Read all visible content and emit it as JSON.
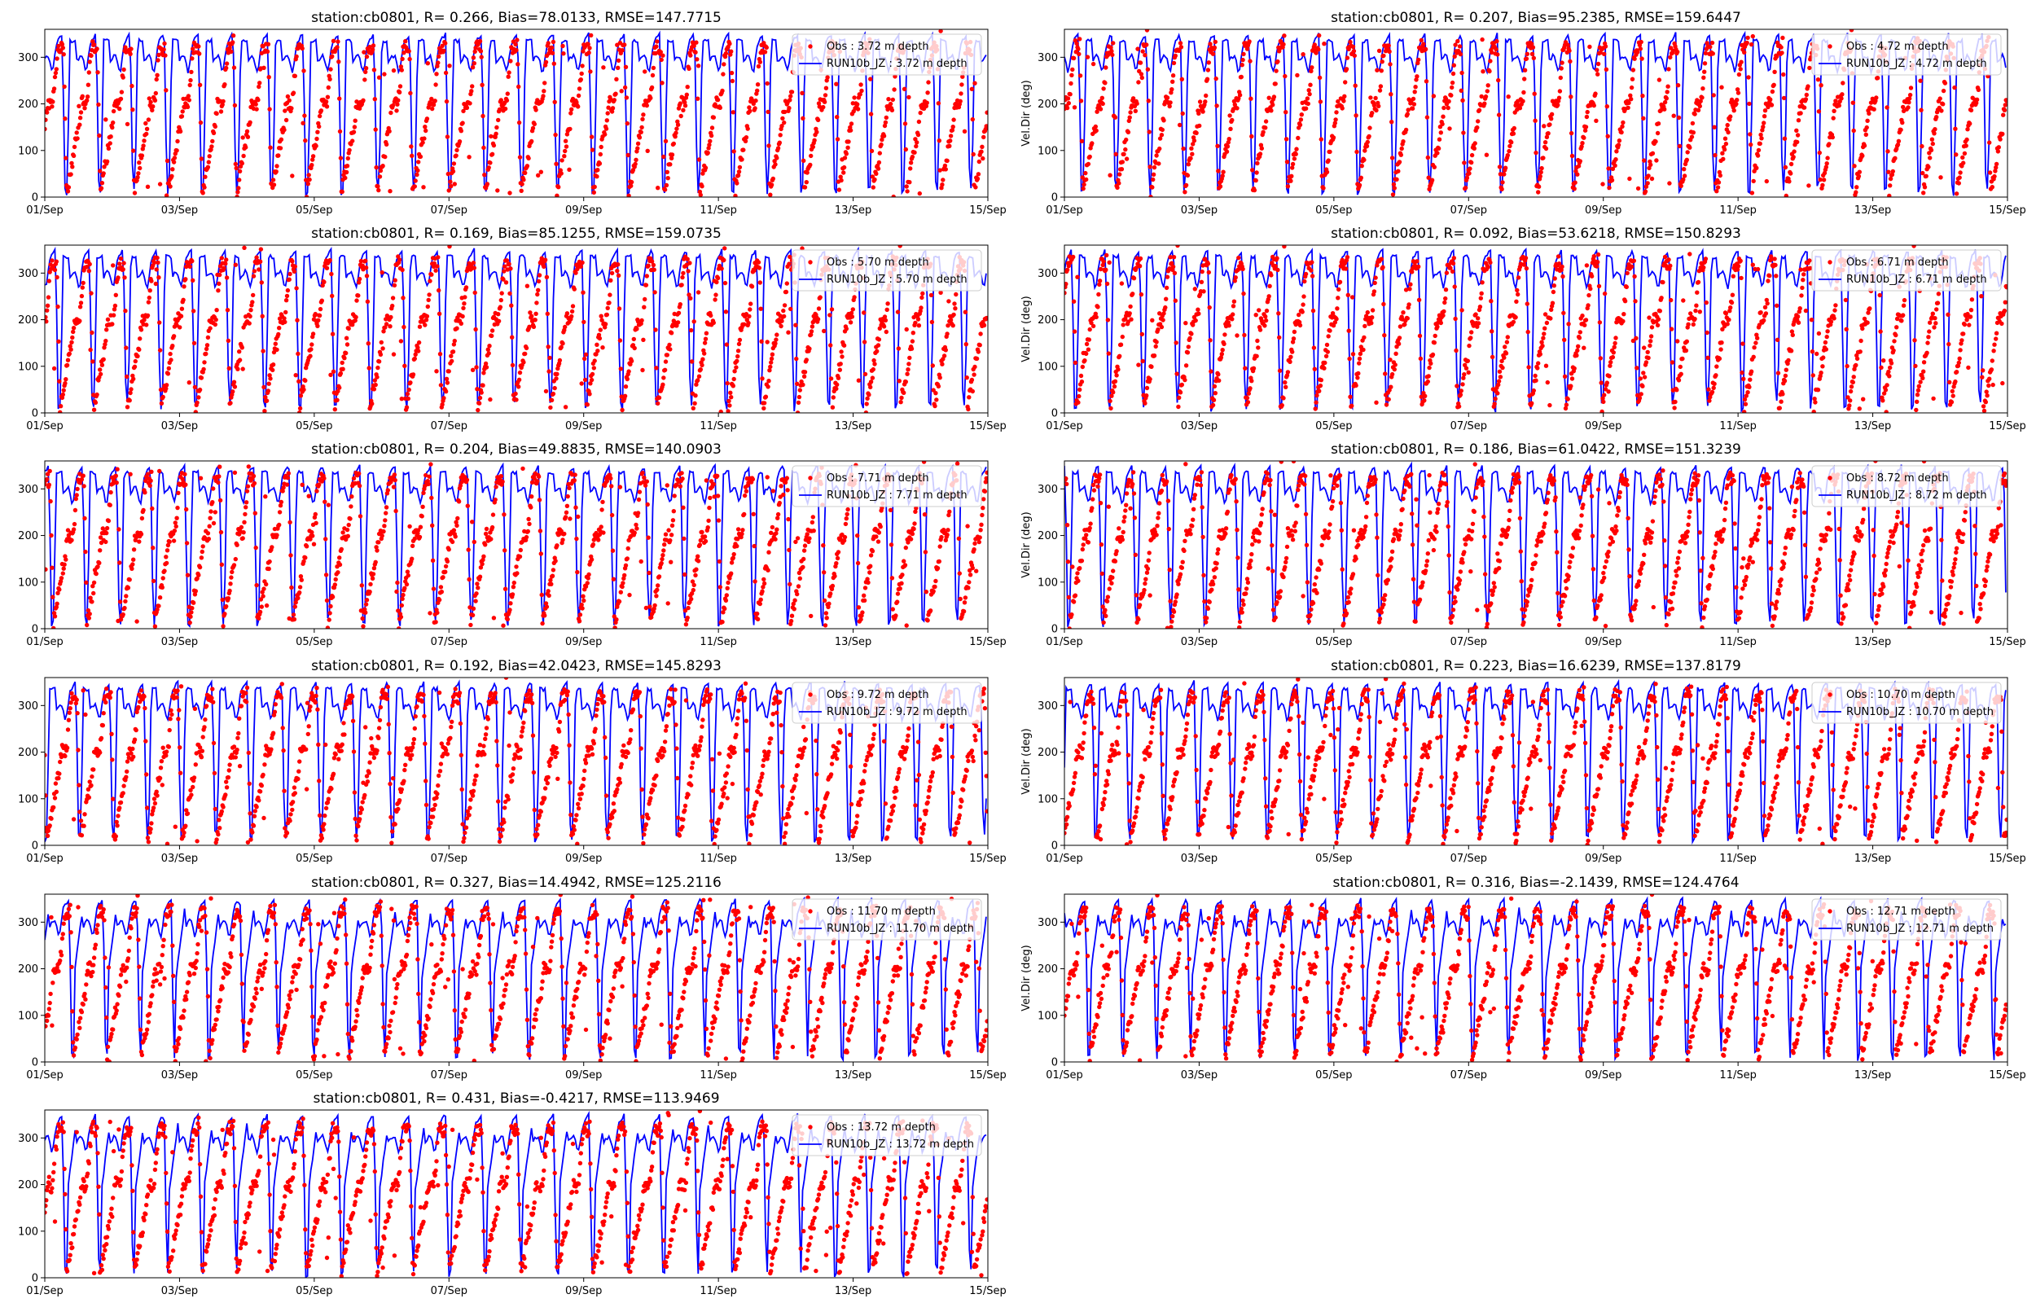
{
  "chart_data": [
    {
      "type": "line",
      "title": "station:cb0801, R= 0.266, Bias=78.0133, RMSE=147.7715",
      "ylabel": "",
      "x_ticks": [
        "01/Sep",
        "03/Sep",
        "05/Sep",
        "07/Sep",
        "09/Sep",
        "11/Sep",
        "13/Sep",
        "15/Sep"
      ],
      "y_ticks": [
        "0",
        "100",
        "200",
        "300"
      ],
      "xlim": [
        "01/Sep",
        "15/Sep"
      ],
      "ylim": [
        0,
        360
      ],
      "legend_position": "upper right",
      "series": [
        {
          "name": "Obs : 3.72 m depth",
          "kind": "scatter",
          "color": "#ff0000"
        },
        {
          "name": "RUN10b_JZ : 3.72 m depth",
          "kind": "line",
          "color": "#0000ff"
        }
      ],
      "grid": false,
      "phase": 0.0,
      "skill": 0.3
    },
    {
      "type": "line",
      "title": "station:cb0801, R= 0.207, Bias=95.2385, RMSE=159.6447",
      "ylabel": "Vel.Dir (deg)",
      "x_ticks": [
        "01/Sep",
        "03/Sep",
        "05/Sep",
        "07/Sep",
        "09/Sep",
        "11/Sep",
        "13/Sep",
        "15/Sep"
      ],
      "y_ticks": [
        "0",
        "100",
        "200",
        "300"
      ],
      "xlim": [
        "01/Sep",
        "15/Sep"
      ],
      "ylim": [
        0,
        360
      ],
      "legend_position": "upper right",
      "series": [
        {
          "name": "Obs : 4.72 m depth",
          "kind": "scatter",
          "color": "#ff0000"
        },
        {
          "name": "RUN10b_JZ : 4.72 m depth",
          "kind": "line",
          "color": "#0000ff"
        }
      ],
      "grid": false,
      "phase": 0.1,
      "skill": 0.25
    },
    {
      "type": "line",
      "title": "station:cb0801, R= 0.169, Bias=85.1255, RMSE=159.0735",
      "ylabel": "",
      "x_ticks": [
        "01/Sep",
        "03/Sep",
        "05/Sep",
        "07/Sep",
        "09/Sep",
        "11/Sep",
        "13/Sep",
        "15/Sep"
      ],
      "y_ticks": [
        "0",
        "100",
        "200",
        "300"
      ],
      "xlim": [
        "01/Sep",
        "15/Sep"
      ],
      "ylim": [
        0,
        360
      ],
      "legend_position": "upper right",
      "series": [
        {
          "name": "Obs : 5.70 m depth",
          "kind": "scatter",
          "color": "#ff0000"
        },
        {
          "name": "RUN10b_JZ : 5.70 m depth",
          "kind": "line",
          "color": "#0000ff"
        }
      ],
      "grid": false,
      "phase": 0.2,
      "skill": 0.22
    },
    {
      "type": "line",
      "title": "station:cb0801, R= 0.092, Bias=53.6218, RMSE=150.8293",
      "ylabel": "Vel.Dir (deg)",
      "x_ticks": [
        "01/Sep",
        "03/Sep",
        "05/Sep",
        "07/Sep",
        "09/Sep",
        "11/Sep",
        "13/Sep",
        "15/Sep"
      ],
      "y_ticks": [
        "0",
        "100",
        "200",
        "300"
      ],
      "xlim": [
        "01/Sep",
        "15/Sep"
      ],
      "ylim": [
        0,
        360
      ],
      "legend_position": "upper right",
      "series": [
        {
          "name": "Obs : 6.71 m depth",
          "kind": "scatter",
          "color": "#ff0000"
        },
        {
          "name": "RUN10b_JZ : 6.71 m depth",
          "kind": "line",
          "color": "#0000ff"
        }
      ],
      "grid": false,
      "phase": 0.3,
      "skill": 0.2
    },
    {
      "type": "line",
      "title": "station:cb0801, R= 0.204, Bias=49.8835, RMSE=140.0903",
      "ylabel": "",
      "x_ticks": [
        "01/Sep",
        "03/Sep",
        "05/Sep",
        "07/Sep",
        "09/Sep",
        "11/Sep",
        "13/Sep",
        "15/Sep"
      ],
      "y_ticks": [
        "0",
        "100",
        "200",
        "300"
      ],
      "xlim": [
        "01/Sep",
        "15/Sep"
      ],
      "ylim": [
        0,
        360
      ],
      "legend_position": "upper right",
      "series": [
        {
          "name": "Obs : 7.71 m depth",
          "kind": "scatter",
          "color": "#ff0000"
        },
        {
          "name": "RUN10b_JZ : 7.71 m depth",
          "kind": "line",
          "color": "#0000ff"
        }
      ],
      "grid": false,
      "phase": 0.4,
      "skill": 0.35
    },
    {
      "type": "line",
      "title": "station:cb0801, R= 0.186, Bias=61.0422, RMSE=151.3239",
      "ylabel": "Vel.Dir (deg)",
      "x_ticks": [
        "01/Sep",
        "03/Sep",
        "05/Sep",
        "07/Sep",
        "09/Sep",
        "11/Sep",
        "13/Sep",
        "15/Sep"
      ],
      "y_ticks": [
        "0",
        "100",
        "200",
        "300"
      ],
      "xlim": [
        "01/Sep",
        "15/Sep"
      ],
      "ylim": [
        0,
        360
      ],
      "legend_position": "upper right",
      "series": [
        {
          "name": "Obs : 8.72 m depth",
          "kind": "scatter",
          "color": "#ff0000"
        },
        {
          "name": "RUN10b_JZ : 8.72 m depth",
          "kind": "line",
          "color": "#0000ff"
        }
      ],
      "grid": false,
      "phase": 0.5,
      "skill": 0.3
    },
    {
      "type": "line",
      "title": "station:cb0801, R= 0.192, Bias=42.0423, RMSE=145.8293",
      "ylabel": "",
      "x_ticks": [
        "01/Sep",
        "03/Sep",
        "05/Sep",
        "07/Sep",
        "09/Sep",
        "11/Sep",
        "13/Sep",
        "15/Sep"
      ],
      "y_ticks": [
        "0",
        "100",
        "200",
        "300"
      ],
      "xlim": [
        "01/Sep",
        "15/Sep"
      ],
      "ylim": [
        0,
        360
      ],
      "legend_position": "upper right",
      "series": [
        {
          "name": "Obs : 9.72 m depth",
          "kind": "scatter",
          "color": "#ff0000"
        },
        {
          "name": "RUN10b_JZ : 9.72 m depth",
          "kind": "line",
          "color": "#0000ff"
        }
      ],
      "grid": false,
      "phase": 0.6,
      "skill": 0.35
    },
    {
      "type": "line",
      "title": "station:cb0801, R= 0.223, Bias=16.6239, RMSE=137.8179",
      "ylabel": "Vel.Dir (deg)",
      "x_ticks": [
        "01/Sep",
        "03/Sep",
        "05/Sep",
        "07/Sep",
        "09/Sep",
        "11/Sep",
        "13/Sep",
        "15/Sep"
      ],
      "y_ticks": [
        "0",
        "100",
        "200",
        "300"
      ],
      "xlim": [
        "01/Sep",
        "15/Sep"
      ],
      "ylim": [
        0,
        360
      ],
      "legend_position": "upper right",
      "series": [
        {
          "name": "Obs : 10.70 m depth",
          "kind": "scatter",
          "color": "#ff0000"
        },
        {
          "name": "RUN10b_JZ : 10.70 m depth",
          "kind": "line",
          "color": "#0000ff"
        }
      ],
      "grid": false,
      "phase": 0.7,
      "skill": 0.45
    },
    {
      "type": "line",
      "title": "station:cb0801, R= 0.327, Bias=14.4942, RMSE=125.2116",
      "ylabel": "",
      "x_ticks": [
        "01/Sep",
        "03/Sep",
        "05/Sep",
        "07/Sep",
        "09/Sep",
        "11/Sep",
        "13/Sep",
        "15/Sep"
      ],
      "y_ticks": [
        "0",
        "100",
        "200",
        "300"
      ],
      "xlim": [
        "01/Sep",
        "15/Sep"
      ],
      "ylim": [
        0,
        360
      ],
      "legend_position": "upper right",
      "series": [
        {
          "name": "Obs : 11.70 m depth",
          "kind": "scatter",
          "color": "#ff0000"
        },
        {
          "name": "RUN10b_JZ : 11.70 m depth",
          "kind": "line",
          "color": "#0000ff"
        }
      ],
      "grid": false,
      "phase": 0.8,
      "skill": 0.6
    },
    {
      "type": "line",
      "title": "station:cb0801, R= 0.316, Bias=-2.1439, RMSE=124.4764",
      "ylabel": "Vel.Dir (deg)",
      "x_ticks": [
        "01/Sep",
        "03/Sep",
        "05/Sep",
        "07/Sep",
        "09/Sep",
        "11/Sep",
        "13/Sep",
        "15/Sep"
      ],
      "y_ticks": [
        "0",
        "100",
        "200",
        "300"
      ],
      "xlim": [
        "01/Sep",
        "15/Sep"
      ],
      "ylim": [
        0,
        360
      ],
      "legend_position": "upper right",
      "series": [
        {
          "name": "Obs : 12.71 m depth",
          "kind": "scatter",
          "color": "#ff0000"
        },
        {
          "name": "RUN10b_JZ : 12.71 m depth",
          "kind": "line",
          "color": "#0000ff"
        }
      ],
      "grid": false,
      "phase": 0.9,
      "skill": 0.7
    },
    {
      "type": "line",
      "title": "station:cb0801, R= 0.431, Bias=-0.4217, RMSE=113.9469",
      "ylabel": "",
      "x_ticks": [
        "01/Sep",
        "03/Sep",
        "05/Sep",
        "07/Sep",
        "09/Sep",
        "11/Sep",
        "13/Sep",
        "15/Sep"
      ],
      "y_ticks": [
        "0",
        "100",
        "200",
        "300"
      ],
      "xlim": [
        "01/Sep",
        "15/Sep"
      ],
      "ylim": [
        0,
        360
      ],
      "legend_position": "upper right",
      "series": [
        {
          "name": "Obs : 13.72 m depth",
          "kind": "scatter",
          "color": "#ff0000"
        },
        {
          "name": "RUN10b_JZ : 13.72 m depth",
          "kind": "line",
          "color": "#0000ff"
        }
      ],
      "grid": false,
      "phase": 1.0,
      "skill": 0.75
    }
  ]
}
